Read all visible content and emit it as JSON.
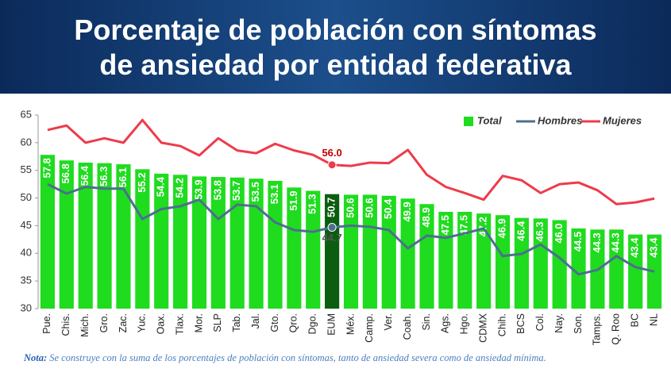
{
  "chart_data": {
    "type": "bar-line",
    "title": [
      "Porcentaje de población con síntomas",
      "de ansiedad por entidad federativa"
    ],
    "categories": [
      "Pue.",
      "Chis.",
      "Mich.",
      "Gro.",
      "Zac.",
      "Yuc.",
      "Oax.",
      "Tlax.",
      "Mor.",
      "SLP",
      "Tab.",
      "Jal.",
      "Gto.",
      "Qro.",
      "Dgo.",
      "EUM",
      "Méx.",
      "Camp.",
      "Ver.",
      "Coah.",
      "Sin.",
      "Ags.",
      "Hgo.",
      "CDMX",
      "Chih.",
      "BCS",
      "Col.",
      "Nay.",
      "Son.",
      "Tamps.",
      "Q. Roo",
      "BC",
      "NL"
    ],
    "series": [
      {
        "name": "Total",
        "kind": "bar",
        "color": "#1fdc1f",
        "highlight_color": "#0b5e10",
        "highlight_category": "EUM",
        "values": [
          57.8,
          56.8,
          56.4,
          56.3,
          56.1,
          55.2,
          54.4,
          54.2,
          53.9,
          53.8,
          53.7,
          53.5,
          53.1,
          51.9,
          51.3,
          50.7,
          50.6,
          50.6,
          50.4,
          49.9,
          48.9,
          47.5,
          47.5,
          47.2,
          46.9,
          46.4,
          46.3,
          46.0,
          44.5,
          44.3,
          44.3,
          43.4,
          43.4
        ],
        "value_labels": [
          "57.8",
          "56.8",
          "56.4",
          "56.3",
          "56.1",
          "55.2",
          "54.4",
          "54.2",
          "53.9",
          "53.8",
          "53.7",
          "53.5",
          "53.1",
          "51.9",
          "51.3",
          "50.7",
          "50.6",
          "50.6",
          "50.4",
          "49.9",
          "48.9",
          "47.5",
          "47.5",
          "47.2",
          "46.9",
          "46.4",
          "46.3",
          "46.0",
          "44.5",
          "44.3",
          "44.3",
          "43.4",
          "43.4"
        ]
      },
      {
        "name": "Hombres",
        "kind": "line",
        "color": "#4d6f8f",
        "values": [
          52.5,
          50.8,
          52.0,
          51.7,
          51.7,
          46.2,
          48.0,
          48.5,
          49.7,
          46.2,
          48.8,
          48.5,
          45.6,
          44.2,
          43.9,
          44.7,
          45.0,
          44.8,
          44.2,
          40.9,
          43.2,
          42.8,
          43.6,
          44.5,
          39.5,
          39.9,
          41.6,
          39.2,
          36.2,
          37.0,
          39.5,
          37.5,
          36.7
        ],
        "value_labels": [
          null,
          null,
          null,
          null,
          null,
          null,
          null,
          null,
          null,
          null,
          null,
          null,
          null,
          null,
          null,
          "44.7",
          null,
          null,
          null,
          null,
          null,
          null,
          null,
          null,
          null,
          null,
          null,
          null,
          null,
          null,
          null,
          null,
          null
        ]
      },
      {
        "name": "Mujeres",
        "kind": "line",
        "color": "#ee3b4b",
        "values": [
          62.3,
          63.1,
          60.0,
          60.8,
          60.0,
          64.1,
          60.0,
          59.4,
          57.7,
          60.8,
          58.6,
          58.1,
          59.8,
          58.6,
          57.8,
          56.0,
          55.8,
          56.4,
          56.3,
          58.7,
          54.2,
          52.0,
          50.9,
          49.7,
          54.0,
          53.2,
          50.9,
          52.5,
          52.8,
          51.4,
          48.9,
          49.2,
          49.9
        ],
        "value_labels": [
          null,
          null,
          null,
          null,
          null,
          null,
          null,
          null,
          null,
          null,
          null,
          null,
          null,
          null,
          null,
          "56.0",
          null,
          null,
          null,
          null,
          null,
          null,
          null,
          null,
          null,
          null,
          null,
          null,
          null,
          null,
          null,
          null,
          null
        ]
      }
    ],
    "ylim": [
      30,
      65
    ],
    "yticks": [
      30,
      35,
      40,
      45,
      50,
      55,
      60,
      65
    ],
    "grid": false,
    "legend": "top-right",
    "note": {
      "label": "Nota:",
      "text": "Se construye con la suma de los porcentajes de población con síntomas, tanto de ansiedad severa como de ansiedad mínima."
    }
  }
}
